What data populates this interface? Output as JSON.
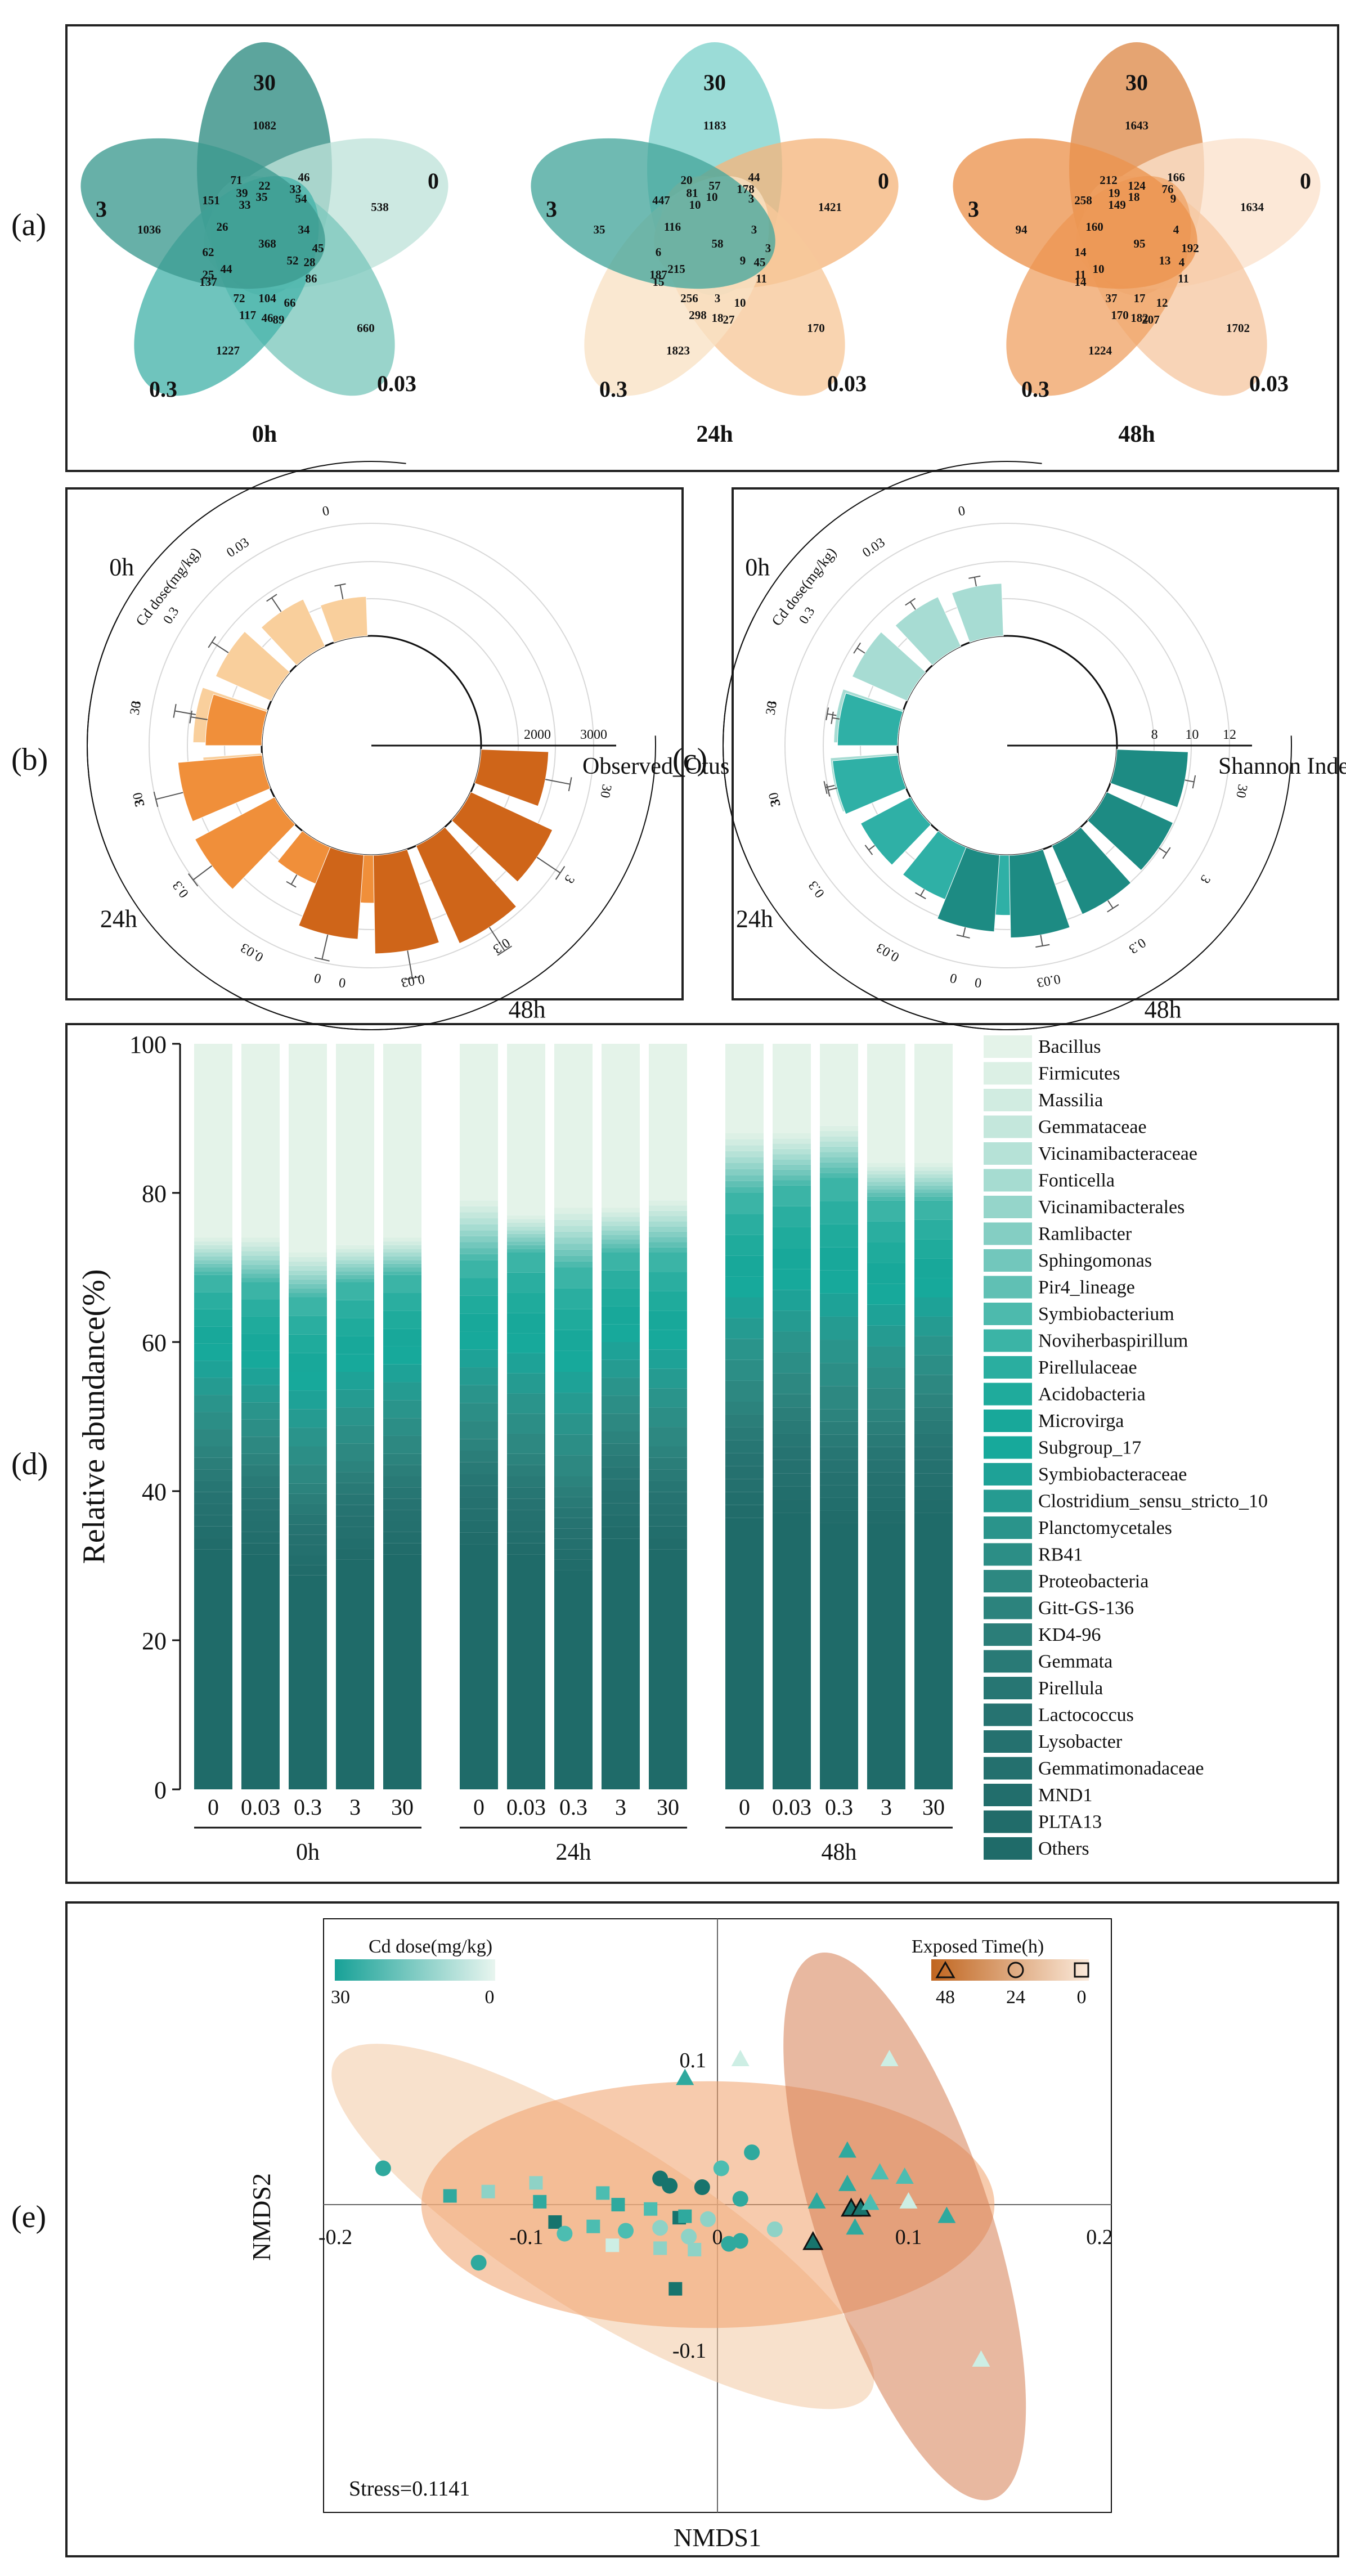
{
  "panels": {
    "a": "(a)",
    "b": "(b)",
    "c": "(c)",
    "d": "(d)",
    "e": "(e)"
  },
  "colors": {
    "teal_dark": "#17746d",
    "teal_mid": "#3aa99e",
    "teal_light": "#a7dcd3",
    "orange_dark": "#c8631a",
    "orange_mid": "#f08f40",
    "orange_light": "#f8cd9e"
  },
  "chart_data": [
    {
      "type": "venn",
      "panel": "a",
      "title": "0h",
      "sets": [
        "30",
        "0",
        "0.03",
        "0.3",
        "3"
      ],
      "petal_colors": [
        "#2e8c82",
        "#bfe3da",
        "#7cc8bd",
        "#47b3aa",
        "#3c9a8f"
      ],
      "numbers": [
        "1082",
        "46",
        "71",
        "22",
        "33",
        "35",
        "54",
        "39",
        "151",
        "33",
        "538",
        "1036",
        "34",
        "26",
        "368",
        "62",
        "45",
        "52",
        "28",
        "25",
        "44",
        "137",
        "86",
        "72",
        "104",
        "66",
        "117",
        "46",
        "89",
        "660",
        "1227"
      ]
    },
    {
      "type": "venn",
      "panel": "a",
      "title": "24h",
      "sets": [
        "30",
        "0",
        "0.03",
        "0.3",
        "3"
      ],
      "petal_colors": [
        "#7fd2cc",
        "#f5b67e",
        "#f7c89a",
        "#f8e1c4",
        "#46a79c"
      ],
      "numbers": [
        "1183",
        "44",
        "20",
        "57",
        "178",
        "10",
        "3",
        "81",
        "447",
        "10",
        "1421",
        "35",
        "3",
        "116",
        "58",
        "6",
        "3",
        "9",
        "45",
        "187",
        "215",
        "15",
        "11",
        "256",
        "3",
        "10",
        "298",
        "18",
        "27",
        "170",
        "1823"
      ]
    },
    {
      "type": "venn",
      "panel": "a",
      "title": "48h",
      "sets": [
        "30",
        "0",
        "0.03",
        "0.3",
        "3"
      ],
      "petal_colors": [
        "#de8a4a",
        "#fbe2cc",
        "#f6c8a3",
        "#f0a468",
        "#ec934e"
      ],
      "numbers": [
        "1643",
        "166",
        "212",
        "124",
        "76",
        "18",
        "9",
        "19",
        "258",
        "149",
        "1634",
        "94",
        "4",
        "160",
        "95",
        "14",
        "192",
        "13",
        "4",
        "11",
        "10",
        "14",
        "11",
        "37",
        "17",
        "12",
        "170",
        "182",
        "207",
        "1702",
        "1224"
      ]
    },
    {
      "type": "bar",
      "layout": "circular",
      "panel": "b",
      "label": "Observed_Otus",
      "axis_label": "Cd dose(mg/kg)",
      "ticks": [
        "2000",
        "3000"
      ],
      "rmax": 3000,
      "groups": [
        {
          "time": "0h",
          "doses": [
            "30",
            "3",
            "0.3",
            "0.03",
            "0"
          ],
          "values": [
            2050,
            2220,
            2080,
            1920,
            1700
          ],
          "errors": [
            420,
            380,
            350,
            300,
            260
          ],
          "color": "#f9cf9c"
        },
        {
          "time": "24h",
          "doses": [
            "0",
            "0.03",
            "0.3",
            "3",
            "30"
          ],
          "values": [
            1850,
            1700,
            2600,
            2500,
            2000
          ],
          "errors": [
            250,
            200,
            420,
            500,
            300
          ],
          "color": "#f08f3a"
        },
        {
          "time": "48h",
          "doses": [
            "30",
            "3",
            "0.3",
            "0.03",
            "0"
          ],
          "values": [
            2200,
            2600,
            2900,
            2750,
            2500
          ],
          "errors": [
            450,
            500,
            500,
            500,
            450
          ],
          "color": "#cf6519"
        }
      ]
    },
    {
      "type": "bar",
      "layout": "circular",
      "panel": "c",
      "label": "Shannon Index",
      "axis_label": "Cd dose(mg/kg)",
      "ticks": [
        "8",
        "10",
        "12"
      ],
      "rmax": 12,
      "groups": [
        {
          "time": "0h",
          "doses": [
            "30",
            "3",
            "0.3",
            "0.03",
            "0"
          ],
          "values": [
            9.6,
            9.4,
            9.2,
            8.9,
            8.8
          ],
          "errors": [
            0.5,
            0.5,
            0.5,
            0.5,
            0.5
          ],
          "color": "#a7dcd3"
        },
        {
          "time": "24h",
          "doses": [
            "0",
            "0.03",
            "0.3",
            "3",
            "30"
          ],
          "values": [
            9.2,
            9.0,
            9.0,
            9.5,
            9.2
          ],
          "errors": [
            0.4,
            0.4,
            0.4,
            0.5,
            0.4
          ],
          "color": "#2fb0a6"
        },
        {
          "time": "48h",
          "doses": [
            "30",
            "3",
            "0.3",
            "0.03",
            "0"
          ],
          "values": [
            9.8,
            9.9,
            10.0,
            10.4,
            10.1
          ],
          "errors": [
            0.5,
            0.5,
            0.5,
            0.6,
            0.5
          ],
          "color": "#1d8b83"
        }
      ]
    },
    {
      "type": "bar",
      "stacked": true,
      "panel": "d",
      "ylabel": "Relative abundance(%)",
      "ylim": [
        0,
        100
      ],
      "yticks": [
        0,
        20,
        40,
        60,
        80,
        100
      ],
      "categories": [
        "0",
        "0.03",
        "0.3",
        "3",
        "30",
        "0",
        "0.03",
        "0.3",
        "3",
        "30",
        "0",
        "0.03",
        "0.3",
        "3",
        "30"
      ],
      "groups": [
        {
          "label": "0h",
          "indices": [
            0,
            1,
            2,
            3,
            4
          ]
        },
        {
          "label": "24h",
          "indices": [
            5,
            6,
            7,
            8,
            9
          ]
        },
        {
          "label": "48h",
          "indices": [
            10,
            11,
            12,
            13,
            14
          ]
        }
      ],
      "series_names": [
        "Bacillus",
        "Firmicutes",
        "Massilia",
        "Gemmataceae",
        "Vicinamibacteraceae",
        "Fonticella",
        "Vicinamibacterales",
        "Ramlibacter",
        "Sphingomonas",
        "Pir4_lineage",
        "Symbiobacterium",
        "Noviherbaspirillum",
        "Pirellulaceae",
        "Acidobacteria",
        "Microvirga",
        "Subgroup_17",
        "Symbiobacteraceae",
        "Clostridium_sensu_stricto_10",
        "Planctomycetales",
        "RB41",
        "Proteobacteria",
        "Gitt-GS-136",
        "KD4-96",
        "Gemmata",
        "Pirellula",
        "Lactococcus",
        "Lysobacter",
        "Gemmatimonadaceae",
        "MND1",
        "PLTA13",
        "Others"
      ],
      "series_colors": [
        "#e4f3e9",
        "#dcf0e5",
        "#d1ece1",
        "#c4e7dc",
        "#b6e2d7",
        "#a6dcd1",
        "#95d5ca",
        "#84cec3",
        "#72c7bc",
        "#60c0b4",
        "#4dbaad",
        "#3bb4a6",
        "#2aaea0",
        "#1fab9c",
        "#18a89a",
        "#17a99b",
        "#1ea297",
        "#259b91",
        "#2a948b",
        "#2c8e86",
        "#2d8881",
        "#2c837d",
        "#2b7e79",
        "#297a76",
        "#277673",
        "#267371",
        "#25716f",
        "#24706e",
        "#226e6c",
        "#216c6a",
        "#1f6b69"
      ],
      "cumulative_bottom_of_top_band": [
        74,
        74,
        72,
        73,
        74,
        79,
        77,
        78,
        78,
        79,
        88,
        88,
        89,
        84,
        84
      ],
      "approx_cumulative_levels": {
        "top_segment_bottom": [
          74,
          74,
          72,
          73,
          74,
          79,
          77,
          78,
          78,
          79,
          88,
          88,
          89,
          84,
          84
        ],
        "mid_transition_top": [
          69,
          68,
          66,
          68,
          69,
          71,
          72,
          70,
          72,
          72,
          80,
          81,
          82,
          79,
          79
        ],
        "dark_base_top": [
          46,
          45,
          41,
          44,
          45,
          47,
          45,
          42,
          48,
          46,
          52,
          53,
          51,
          51,
          53
        ]
      }
    },
    {
      "type": "scatter",
      "panel": "e",
      "xlabel": "NMDS1",
      "ylabel": "NMDS2",
      "xlim": [
        -0.2,
        0.2
      ],
      "ylim": [
        -0.12,
        0.12
      ],
      "xticks": [
        "-0.2",
        "-0.1",
        "0",
        "0.1",
        "0.2"
      ],
      "yticks": [
        "0.1",
        "-0.1"
      ],
      "stress": "Stress=0.1141",
      "legend_dose_title": "Cd dose(mg/kg)",
      "legend_dose_range": [
        "30",
        "0"
      ],
      "legend_time_title": "Exposed Time(h)",
      "legend_time_values": [
        "48",
        "24",
        "0"
      ],
      "points": [
        {
          "x": -0.175,
          "y": 0.025,
          "shape": "circle",
          "dose": 3
        },
        {
          "x": -0.14,
          "y": 0.006,
          "shape": "square",
          "dose": 3
        },
        {
          "x": -0.12,
          "y": 0.009,
          "shape": "square",
          "dose": 0.03
        },
        {
          "x": -0.125,
          "y": -0.04,
          "shape": "circle",
          "dose": 3
        },
        {
          "x": -0.095,
          "y": 0.015,
          "shape": "square",
          "dose": 0.03
        },
        {
          "x": -0.093,
          "y": 0.002,
          "shape": "square",
          "dose": 3
        },
        {
          "x": -0.085,
          "y": -0.012,
          "shape": "square",
          "dose": 30
        },
        {
          "x": -0.08,
          "y": -0.02,
          "shape": "circle",
          "dose": 0.3
        },
        {
          "x": -0.065,
          "y": -0.015,
          "shape": "square",
          "dose": 0.3
        },
        {
          "x": -0.06,
          "y": 0.008,
          "shape": "square",
          "dose": 0.3
        },
        {
          "x": -0.055,
          "y": -0.028,
          "shape": "square",
          "dose": 0
        },
        {
          "x": -0.052,
          "y": 0.0,
          "shape": "square",
          "dose": 3
        },
        {
          "x": -0.048,
          "y": -0.018,
          "shape": "circle",
          "dose": 0.3
        },
        {
          "x": -0.035,
          "y": -0.003,
          "shape": "square",
          "dose": 0.3
        },
        {
          "x": -0.03,
          "y": 0.018,
          "shape": "circle",
          "dose": 30
        },
        {
          "x": -0.03,
          "y": -0.016,
          "shape": "circle",
          "dose": 0.03
        },
        {
          "x": -0.03,
          "y": -0.03,
          "shape": "square",
          "dose": 0.03
        },
        {
          "x": -0.025,
          "y": 0.013,
          "shape": "circle",
          "dose": 30
        },
        {
          "x": -0.02,
          "y": -0.009,
          "shape": "square",
          "dose": 30
        },
        {
          "x": -0.017,
          "y": -0.008,
          "shape": "square",
          "dose": 3
        },
        {
          "x": -0.015,
          "y": -0.022,
          "shape": "circle",
          "dose": 0.03
        },
        {
          "x": -0.012,
          "y": -0.031,
          "shape": "square",
          "dose": 0.03
        },
        {
          "x": -0.008,
          "y": 0.012,
          "shape": "circle",
          "dose": 30
        },
        {
          "x": -0.005,
          "y": -0.01,
          "shape": "circle",
          "dose": 0.03
        },
        {
          "x": 0.002,
          "y": 0.025,
          "shape": "circle",
          "dose": 0.3
        },
        {
          "x": 0.006,
          "y": -0.027,
          "shape": "circle",
          "dose": 3
        },
        {
          "x": 0.012,
          "y": -0.025,
          "shape": "circle",
          "dose": 3
        },
        {
          "x": 0.012,
          "y": 0.004,
          "shape": "circle",
          "dose": 3
        },
        {
          "x": 0.018,
          "y": 0.036,
          "shape": "circle",
          "dose": 3
        },
        {
          "x": 0.03,
          "y": -0.017,
          "shape": "circle",
          "dose": 0.03
        },
        {
          "x": -0.022,
          "y": -0.058,
          "shape": "square",
          "dose": 30
        },
        {
          "x": 0.012,
          "y": 0.1,
          "shape": "triangle",
          "dose": 0
        },
        {
          "x": -0.017,
          "y": 0.087,
          "shape": "triangle",
          "dose": 3
        },
        {
          "x": 0.052,
          "y": 0.002,
          "shape": "triangle",
          "dose": 3
        },
        {
          "x": 0.068,
          "y": 0.014,
          "shape": "triangle",
          "dose": 3
        },
        {
          "x": 0.07,
          "y": -0.003,
          "shape": "triangle",
          "dose": 30,
          "highlight": true
        },
        {
          "x": 0.075,
          "y": -0.003,
          "shape": "triangle",
          "dose": 30,
          "highlight": true
        },
        {
          "x": 0.05,
          "y": -0.026,
          "shape": "triangle",
          "dose": 30,
          "highlight": true
        },
        {
          "x": 0.068,
          "y": 0.037,
          "shape": "triangle",
          "dose": 3
        },
        {
          "x": 0.072,
          "y": -0.016,
          "shape": "triangle",
          "dose": 3
        },
        {
          "x": 0.08,
          "y": 0.001,
          "shape": "triangle",
          "dose": 0.3
        },
        {
          "x": 0.085,
          "y": 0.022,
          "shape": "triangle",
          "dose": 0.3
        },
        {
          "x": 0.09,
          "y": 0.1,
          "shape": "triangle",
          "dose": 0
        },
        {
          "x": 0.098,
          "y": 0.019,
          "shape": "triangle",
          "dose": 0.3
        },
        {
          "x": 0.1,
          "y": 0.002,
          "shape": "triangle",
          "dose": 0
        },
        {
          "x": 0.12,
          "y": -0.008,
          "shape": "triangle",
          "dose": 3
        },
        {
          "x": 0.138,
          "y": -0.107,
          "shape": "triangle",
          "dose": 0
        }
      ],
      "ellipses": [
        {
          "cx": -0.06,
          "cy": -0.015,
          "rx": 0.165,
          "ry": 0.06,
          "angle_deg": 32,
          "color": "#f3c9a3",
          "group": "0"
        },
        {
          "cx": -0.005,
          "cy": 0.0,
          "rx": 0.15,
          "ry": 0.085,
          "angle_deg": 0,
          "color": "#f0a06a",
          "group": "24"
        },
        {
          "cx": 0.098,
          "cy": -0.015,
          "rx": 0.15,
          "ry": 0.06,
          "angle_deg": 72,
          "color": "#d57d52",
          "group": "48"
        }
      ]
    }
  ]
}
